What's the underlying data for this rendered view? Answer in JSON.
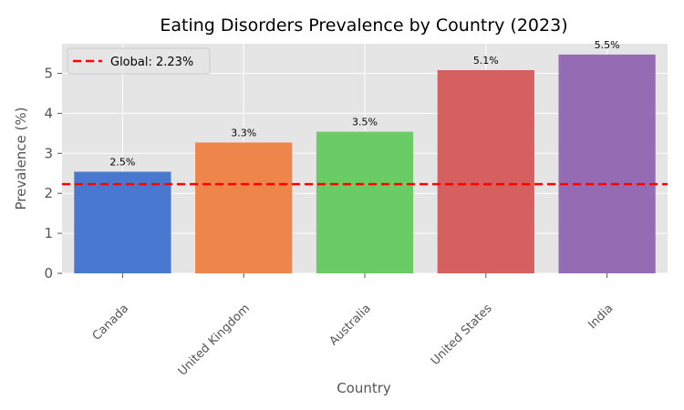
{
  "chart_data": {
    "type": "bar",
    "title": "Eating Disorders Prevalence by Country (2023)",
    "xlabel": "Country",
    "ylabel": "Prevalence (%)",
    "categories": [
      "Canada",
      "United Kingdom",
      "Australia",
      "United States",
      "India"
    ],
    "values": [
      2.54,
      3.27,
      3.54,
      5.08,
      5.47
    ],
    "value_labels": [
      "2.5%",
      "3.3%",
      "3.5%",
      "5.1%",
      "5.5%"
    ],
    "bar_colors": [
      "#4878d0",
      "#ee854a",
      "#6acc64",
      "#d65f5f",
      "#956cb4"
    ],
    "yticks": [
      "0",
      "1",
      "2",
      "3",
      "4",
      "5"
    ],
    "ylim": [
      0,
      5.74
    ],
    "grid": true,
    "reference_line": {
      "value": 2.23,
      "label": "Global: 2.23%",
      "color": "#ff0000",
      "style": "dashed"
    },
    "legend_position": "top-left"
  }
}
